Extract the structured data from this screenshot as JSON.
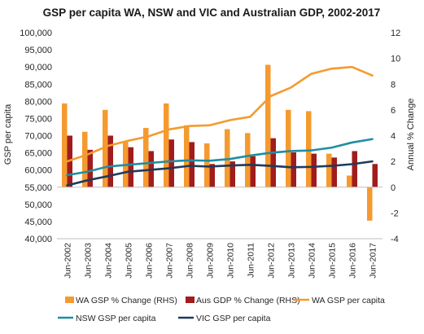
{
  "chart_data": {
    "type": "bar",
    "title": "GSP per capita WA, NSW and VIC and Australian GDP, 2002-2017",
    "ylabel": "GSP per capita",
    "y2label": "Annual % Change",
    "ylim": [
      40000,
      100000
    ],
    "y2lim": [
      -4,
      12
    ],
    "yticks": [
      "40,000",
      "45,000",
      "50,000",
      "55,000",
      "60,000",
      "65,000",
      "70,000",
      "75,000",
      "80,000",
      "85,000",
      "90,000",
      "95,000",
      "100,000"
    ],
    "y2ticks": [
      "-4",
      "-2",
      "0",
      "2",
      "4",
      "6",
      "8",
      "10",
      "12"
    ],
    "categories": [
      "Jun-2002",
      "Jun-2003",
      "Jun-2004",
      "Jun-2005",
      "Jun-2006",
      "Jun-2007",
      "Jun-2008",
      "Jun-2009",
      "Jun-2010",
      "Jun-2011",
      "Jun-2012",
      "Jun-2013",
      "Jun-2014",
      "Jun-2015",
      "Jun-2016",
      "Jun-2017"
    ],
    "bar_series": [
      {
        "name": "WA GSP % Change (RHS)",
        "color": "#f59a2f",
        "values": [
          6.5,
          4.3,
          6.0,
          3.5,
          4.6,
          6.5,
          4.8,
          3.4,
          4.5,
          4.2,
          9.5,
          6.0,
          5.9,
          2.6,
          0.9,
          -2.6
        ]
      },
      {
        "name": "Aus GDP % Change (RHS)",
        "color": "#a11c1c",
        "values": [
          4.0,
          2.9,
          4.0,
          3.1,
          2.8,
          3.7,
          3.5,
          1.8,
          2.0,
          2.4,
          3.8,
          2.7,
          2.6,
          2.3,
          2.8,
          1.8
        ]
      }
    ],
    "line_series": [
      {
        "name": "WA GSP per capita",
        "color": "#f59a2f",
        "values": [
          62500,
          64500,
          67000,
          68500,
          69800,
          71800,
          72800,
          73000,
          74500,
          75500,
          81500,
          84000,
          88000,
          89500,
          90000,
          87500
        ]
      },
      {
        "name": "NSW GSP per capita",
        "color": "#1f8ea3",
        "values": [
          58500,
          59500,
          61000,
          61500,
          62000,
          62500,
          62800,
          62700,
          63200,
          64200,
          65000,
          65500,
          65700,
          66500,
          68000,
          69000
        ]
      },
      {
        "name": "VIC GSP per capita",
        "color": "#1f3a5a",
        "values": [
          55500,
          57000,
          58200,
          59500,
          60000,
          60500,
          61200,
          61000,
          61300,
          61500,
          61200,
          60800,
          60900,
          61200,
          61700,
          62500
        ]
      }
    ],
    "legend_position": "bottom",
    "grid": false
  }
}
